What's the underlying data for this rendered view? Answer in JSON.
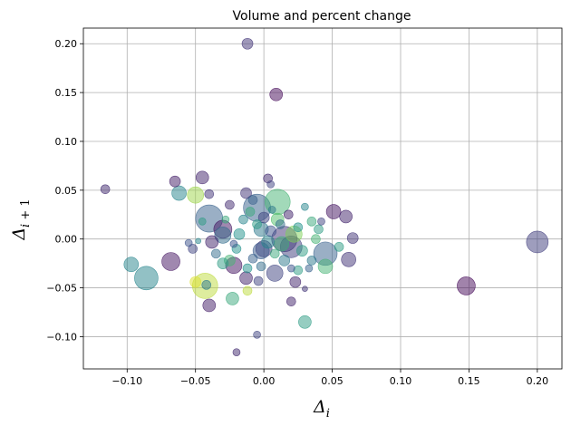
{
  "chart_data": {
    "type": "scatter",
    "title": "Volume and percent change",
    "xlabel": "Δ_i",
    "ylabel": "Δ_{i+1}",
    "xlim": [
      -0.132,
      0.218
    ],
    "ylim": [
      -0.133,
      0.216
    ],
    "xticks": [
      -0.1,
      -0.05,
      0.0,
      0.05,
      0.1,
      0.15,
      0.2
    ],
    "yticks": [
      -0.1,
      -0.05,
      0.0,
      0.05,
      0.1,
      0.15,
      0.2
    ],
    "xtick_labels": [
      "−0.10",
      "−0.05",
      "0.00",
      "0.05",
      "0.10",
      "0.15",
      "0.20"
    ],
    "ytick_labels": [
      "−0.10",
      "−0.05",
      "0.00",
      "0.05",
      "0.10",
      "0.15",
      "0.20"
    ],
    "grid": true,
    "alpha": 0.5,
    "colormap": [
      "#440154",
      "#3b528b",
      "#21918c",
      "#5ec962",
      "#fde725"
    ],
    "points": [
      {
        "x": -0.012,
        "y": 0.2,
        "size": 6,
        "color": 0.15
      },
      {
        "x": 0.009,
        "y": 0.148,
        "size": 7,
        "color": 0.02
      },
      {
        "x": -0.116,
        "y": 0.051,
        "size": 5,
        "color": 0.12
      },
      {
        "x": 0.2,
        "y": -0.003,
        "size": 12,
        "color": 0.18
      },
      {
        "x": 0.148,
        "y": -0.048,
        "size": 10,
        "color": 0.02
      },
      {
        "x": -0.097,
        "y": -0.026,
        "size": 8,
        "color": 0.45
      },
      {
        "x": -0.086,
        "y": -0.04,
        "size": 13,
        "color": 0.45
      },
      {
        "x": -0.068,
        "y": -0.023,
        "size": 10,
        "color": 0.05
      },
      {
        "x": -0.065,
        "y": 0.059,
        "size": 6,
        "color": 0.08
      },
      {
        "x": -0.062,
        "y": 0.047,
        "size": 8,
        "color": 0.45
      },
      {
        "x": -0.05,
        "y": 0.045,
        "size": 9,
        "color": 0.85
      },
      {
        "x": -0.045,
        "y": 0.063,
        "size": 7,
        "color": 0.1
      },
      {
        "x": -0.04,
        "y": 0.046,
        "size": 5,
        "color": 0.15
      },
      {
        "x": -0.04,
        "y": 0.021,
        "size": 15,
        "color": 0.3
      },
      {
        "x": -0.038,
        "y": -0.003,
        "size": 7,
        "color": 0.1
      },
      {
        "x": -0.043,
        "y": -0.048,
        "size": 14,
        "color": 0.9
      },
      {
        "x": -0.05,
        "y": -0.044,
        "size": 6,
        "color": 0.95
      },
      {
        "x": -0.042,
        "y": -0.047,
        "size": 5,
        "color": 0.4
      },
      {
        "x": -0.04,
        "y": -0.068,
        "size": 7,
        "color": 0.08
      },
      {
        "x": -0.023,
        "y": -0.061,
        "size": 7,
        "color": 0.6
      },
      {
        "x": -0.02,
        "y": -0.116,
        "size": 4,
        "color": 0.12
      },
      {
        "x": -0.005,
        "y": -0.098,
        "size": 4,
        "color": 0.2
      },
      {
        "x": 0.03,
        "y": -0.085,
        "size": 7,
        "color": 0.55
      },
      {
        "x": 0.02,
        "y": -0.064,
        "size": 5,
        "color": 0.1
      },
      {
        "x": -0.012,
        "y": -0.053,
        "size": 5,
        "color": 0.9
      },
      {
        "x": -0.013,
        "y": -0.04,
        "size": 7,
        "color": 0.1
      },
      {
        "x": -0.004,
        "y": -0.043,
        "size": 5,
        "color": 0.2
      },
      {
        "x": -0.022,
        "y": -0.027,
        "size": 9,
        "color": 0.05
      },
      {
        "x": -0.025,
        "y": -0.022,
        "size": 6,
        "color": 0.65
      },
      {
        "x": -0.03,
        "y": 0.01,
        "size": 10,
        "color": 0.05
      },
      {
        "x": -0.03,
        "y": 0.004,
        "size": 9,
        "color": 0.35
      },
      {
        "x": -0.025,
        "y": 0.035,
        "size": 5,
        "color": 0.12
      },
      {
        "x": -0.013,
        "y": 0.047,
        "size": 6,
        "color": 0.15
      },
      {
        "x": -0.005,
        "y": 0.032,
        "size": 15,
        "color": 0.3
      },
      {
        "x": 0.01,
        "y": 0.038,
        "size": 14,
        "color": 0.65
      },
      {
        "x": 0.003,
        "y": 0.062,
        "size": 5,
        "color": 0.12
      },
      {
        "x": 0.005,
        "y": 0.056,
        "size": 4,
        "color": 0.2
      },
      {
        "x": -0.002,
        "y": 0.01,
        "size": 8,
        "color": 0.4
      },
      {
        "x": 0.0,
        "y": -0.01,
        "size": 9,
        "color": 0.15
      },
      {
        "x": 0.01,
        "y": 0.02,
        "size": 7,
        "color": 0.7
      },
      {
        "x": 0.015,
        "y": 0.0,
        "size": 14,
        "color": 0.15
      },
      {
        "x": 0.02,
        "y": -0.008,
        "size": 12,
        "color": 0.18
      },
      {
        "x": 0.022,
        "y": 0.005,
        "size": 9,
        "color": 0.8
      },
      {
        "x": 0.008,
        "y": -0.035,
        "size": 9,
        "color": 0.2
      },
      {
        "x": 0.023,
        "y": -0.044,
        "size": 6,
        "color": 0.1
      },
      {
        "x": 0.025,
        "y": -0.032,
        "size": 5,
        "color": 0.55
      },
      {
        "x": 0.03,
        "y": -0.051,
        "size": 3,
        "color": 0.15
      },
      {
        "x": 0.045,
        "y": -0.015,
        "size": 13,
        "color": 0.3
      },
      {
        "x": 0.045,
        "y": -0.028,
        "size": 8,
        "color": 0.65
      },
      {
        "x": 0.051,
        "y": 0.028,
        "size": 8,
        "color": 0.05
      },
      {
        "x": 0.06,
        "y": 0.023,
        "size": 7,
        "color": 0.1
      },
      {
        "x": 0.062,
        "y": -0.021,
        "size": 8,
        "color": 0.15
      },
      {
        "x": 0.065,
        "y": 0.001,
        "size": 6,
        "color": 0.15
      },
      {
        "x": 0.04,
        "y": 0.01,
        "size": 5,
        "color": 0.55
      },
      {
        "x": 0.035,
        "y": 0.018,
        "size": 5,
        "color": 0.6
      },
      {
        "x": 0.03,
        "y": 0.033,
        "size": 4,
        "color": 0.45
      },
      {
        "x": 0.055,
        "y": -0.008,
        "size": 5,
        "color": 0.55
      },
      {
        "x": 0.033,
        "y": -0.03,
        "size": 4,
        "color": 0.3
      },
      {
        "x": 0.035,
        "y": -0.022,
        "size": 5,
        "color": 0.4
      },
      {
        "x": 0.038,
        "y": 0.0,
        "size": 5,
        "color": 0.65
      },
      {
        "x": -0.055,
        "y": -0.004,
        "size": 4,
        "color": 0.25
      },
      {
        "x": -0.052,
        "y": -0.01,
        "size": 5,
        "color": 0.2
      },
      {
        "x": -0.048,
        "y": -0.002,
        "size": 3,
        "color": 0.45
      },
      {
        "x": -0.035,
        "y": -0.015,
        "size": 5,
        "color": 0.35
      },
      {
        "x": -0.03,
        "y": -0.025,
        "size": 6,
        "color": 0.55
      },
      {
        "x": -0.02,
        "y": -0.01,
        "size": 5,
        "color": 0.5
      },
      {
        "x": -0.018,
        "y": 0.005,
        "size": 6,
        "color": 0.5
      },
      {
        "x": -0.015,
        "y": 0.02,
        "size": 5,
        "color": 0.45
      },
      {
        "x": -0.01,
        "y": 0.028,
        "size": 5,
        "color": 0.6
      },
      {
        "x": -0.008,
        "y": -0.02,
        "size": 5,
        "color": 0.3
      },
      {
        "x": -0.005,
        "y": 0.015,
        "size": 5,
        "color": 0.55
      },
      {
        "x": 0.0,
        "y": 0.022,
        "size": 6,
        "color": 0.2
      },
      {
        "x": 0.003,
        "y": -0.003,
        "size": 7,
        "color": 0.45
      },
      {
        "x": 0.005,
        "y": 0.008,
        "size": 6,
        "color": 0.25
      },
      {
        "x": 0.008,
        "y": -0.015,
        "size": 5,
        "color": 0.6
      },
      {
        "x": 0.012,
        "y": 0.015,
        "size": 5,
        "color": 0.35
      },
      {
        "x": 0.015,
        "y": -0.022,
        "size": 6,
        "color": 0.4
      },
      {
        "x": 0.018,
        "y": 0.025,
        "size": 5,
        "color": 0.1
      },
      {
        "x": 0.025,
        "y": 0.012,
        "size": 5,
        "color": 0.5
      },
      {
        "x": 0.028,
        "y": -0.012,
        "size": 6,
        "color": 0.55
      },
      {
        "x": -0.028,
        "y": 0.02,
        "size": 4,
        "color": 0.6
      },
      {
        "x": -0.022,
        "y": -0.005,
        "size": 4,
        "color": 0.25
      },
      {
        "x": -0.012,
        "y": -0.03,
        "size": 5,
        "color": 0.5
      },
      {
        "x": -0.002,
        "y": -0.028,
        "size": 5,
        "color": 0.35
      },
      {
        "x": 0.006,
        "y": 0.03,
        "size": 4,
        "color": 0.4
      },
      {
        "x": 0.02,
        "y": -0.03,
        "size": 4,
        "color": 0.25
      },
      {
        "x": 0.042,
        "y": 0.018,
        "size": 4,
        "color": 0.2
      },
      {
        "x": -0.045,
        "y": 0.018,
        "size": 4,
        "color": 0.55
      },
      {
        "x": -0.008,
        "y": 0.04,
        "size": 5,
        "color": 0.3
      },
      {
        "x": 0.013,
        "y": -0.005,
        "size": 8,
        "color": 0.62
      },
      {
        "x": -0.002,
        "y": -0.012,
        "size": 9,
        "color": 0.28
      }
    ]
  }
}
